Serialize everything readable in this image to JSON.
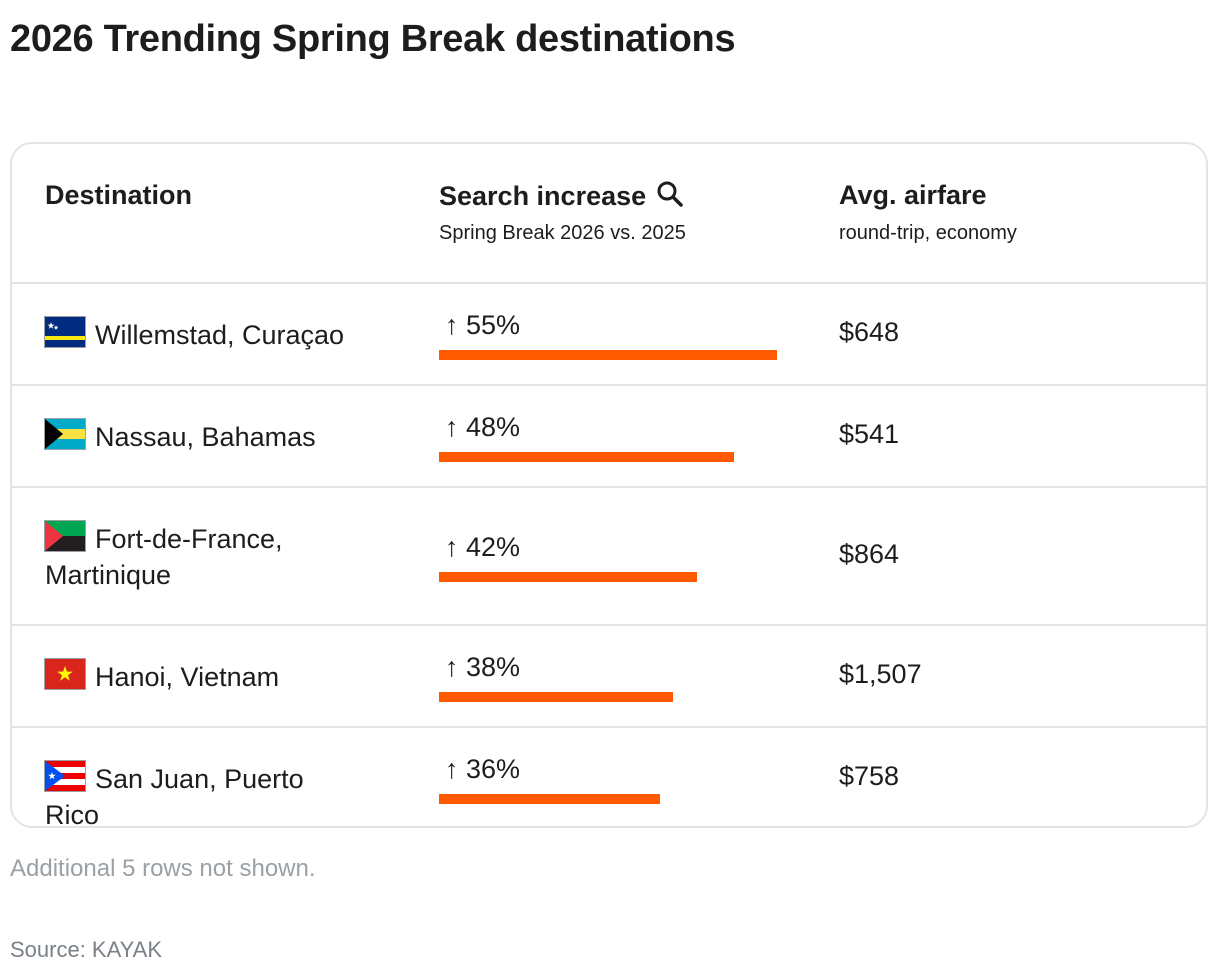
{
  "title": "2026 Trending Spring Break destinations",
  "headers": {
    "destination": "Destination",
    "search": "Search increase",
    "search_sub": "Spring Break 2026 vs. 2025",
    "airfare": "Avg. airfare",
    "airfare_sub": "round-trip, economy"
  },
  "rows": [
    {
      "destination": "Willemstad, Curaçao",
      "flag": "curacao-flag-icon",
      "increase_label": "↑ 55%",
      "increase": 55,
      "airfare": "$648"
    },
    {
      "destination": "Nassau, Bahamas",
      "flag": "bahamas-flag-icon",
      "increase_label": "↑ 48%",
      "increase": 48,
      "airfare": "$541"
    },
    {
      "destination": "Fort-de-France, Martinique",
      "flag": "martinique-flag-icon",
      "increase_label": "↑ 42%",
      "increase": 42,
      "airfare": "$864"
    },
    {
      "destination": "Hanoi, Vietnam",
      "flag": "vietnam-flag-icon",
      "increase_label": "↑ 38%",
      "increase": 38,
      "airfare": "$1,507"
    },
    {
      "destination": "San Juan, Puerto Rico",
      "flag": "puerto-rico-flag-icon",
      "increase_label": "↑ 36%",
      "increase": 36,
      "airfare": "$758"
    }
  ],
  "footnote": "Additional 5 rows not shown.",
  "source": "Source: KAYAK",
  "colors": {
    "bar": "#ff5a00",
    "border": "#e2e4e6",
    "muted": "#9aa0a6"
  },
  "chart_data": {
    "type": "table",
    "title": "2026 Trending Spring Break destinations",
    "columns": [
      "Destination",
      "Search increase",
      "Avg. airfare"
    ],
    "categories": [
      "Willemstad, Curaçao",
      "Nassau, Bahamas",
      "Fort-de-France, Martinique",
      "Hanoi, Vietnam",
      "San Juan, Puerto Rico"
    ],
    "series": [
      {
        "name": "Search increase",
        "values": [
          55,
          48,
          42,
          38,
          36
        ]
      },
      {
        "name": "Avg. airfare",
        "values": [
          648,
          541,
          864,
          1507,
          758
        ]
      }
    ]
  }
}
